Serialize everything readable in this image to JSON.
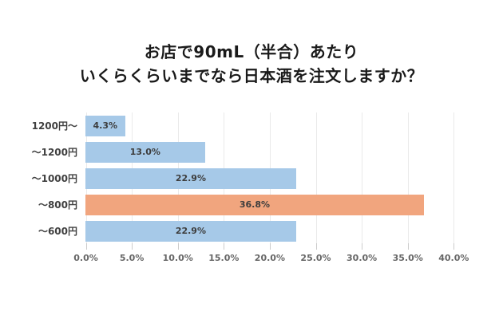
{
  "title": {
    "line1": "お店で90mL（半合）あたり",
    "line2": "いくらくらいまでなら日本酒を注文しますか？"
  },
  "chart_data": {
    "type": "bar",
    "orientation": "horizontal",
    "title": "お店で90mL（半合）あたり いくらくらいまでなら日本酒を注文しますか？",
    "categories": [
      "1200円〜",
      "〜1200円",
      "〜1000円",
      "〜800円",
      "〜600円"
    ],
    "values": [
      4.3,
      13.0,
      22.9,
      36.8,
      22.9
    ],
    "value_labels": [
      "4.3%",
      "13.0%",
      "22.9%",
      "36.8%",
      "22.9%"
    ],
    "highlight_index": 3,
    "xlim": [
      0,
      40
    ],
    "x_tick_step": 5,
    "x_tick_labels": [
      "0.0%",
      "5.0%",
      "10.0%",
      "15.0%",
      "20.0%",
      "25.0%",
      "30.0%",
      "35.0%",
      "40.0%"
    ],
    "grid": true,
    "legend": false,
    "colors": {
      "bar": "#a6c9e8",
      "highlight": "#f1a57e",
      "gridline": "#eaeaea",
      "tick": "#cccccc",
      "value_text": "#3d3d3d",
      "category_text": "#404040",
      "tick_text": "#666666"
    }
  }
}
